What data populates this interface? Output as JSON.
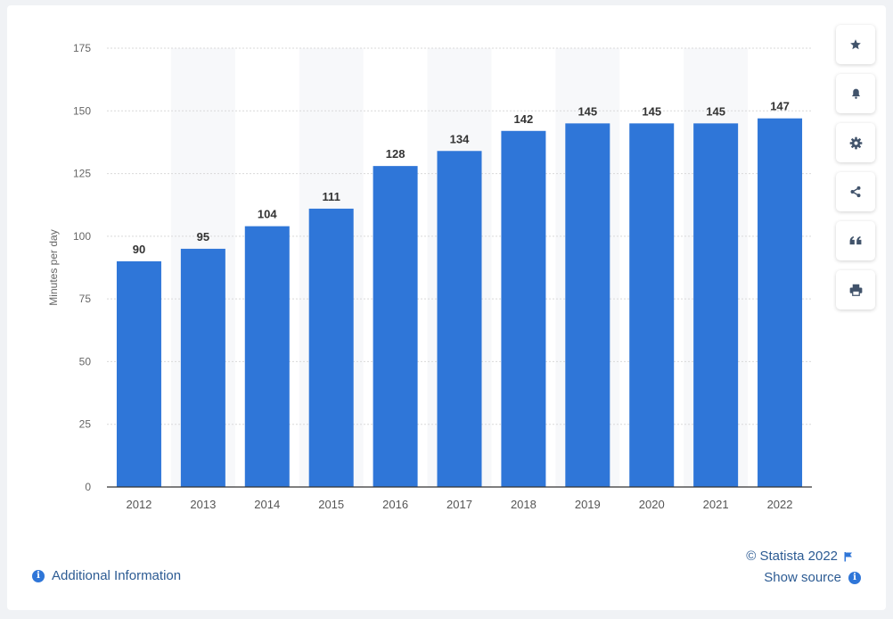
{
  "chart_data": {
    "type": "bar",
    "ylabel": "Minutes per day",
    "categories": [
      "2012",
      "2013",
      "2014",
      "2015",
      "2016",
      "2017",
      "2018",
      "2019",
      "2020",
      "2021",
      "2022"
    ],
    "values": [
      90,
      95,
      104,
      111,
      128,
      134,
      142,
      145,
      145,
      145,
      147
    ],
    "yticks": [
      0,
      25,
      50,
      75,
      100,
      125,
      150,
      175
    ],
    "ylim": [
      0,
      175
    ],
    "grid": true,
    "bar_color": "#2f76d8",
    "band_color": "#f7f8fa"
  },
  "toolbar": {
    "items": [
      {
        "name": "favorite-button",
        "icon": "star-icon"
      },
      {
        "name": "notify-button",
        "icon": "bell-icon"
      },
      {
        "name": "settings-button",
        "icon": "gear-icon"
      },
      {
        "name": "share-button",
        "icon": "share-icon"
      },
      {
        "name": "cite-button",
        "icon": "quote-icon"
      },
      {
        "name": "print-button",
        "icon": "printer-icon"
      }
    ]
  },
  "footer": {
    "credit": "© Statista 2022",
    "show_source": "Show source",
    "additional_info": "Additional Information"
  }
}
